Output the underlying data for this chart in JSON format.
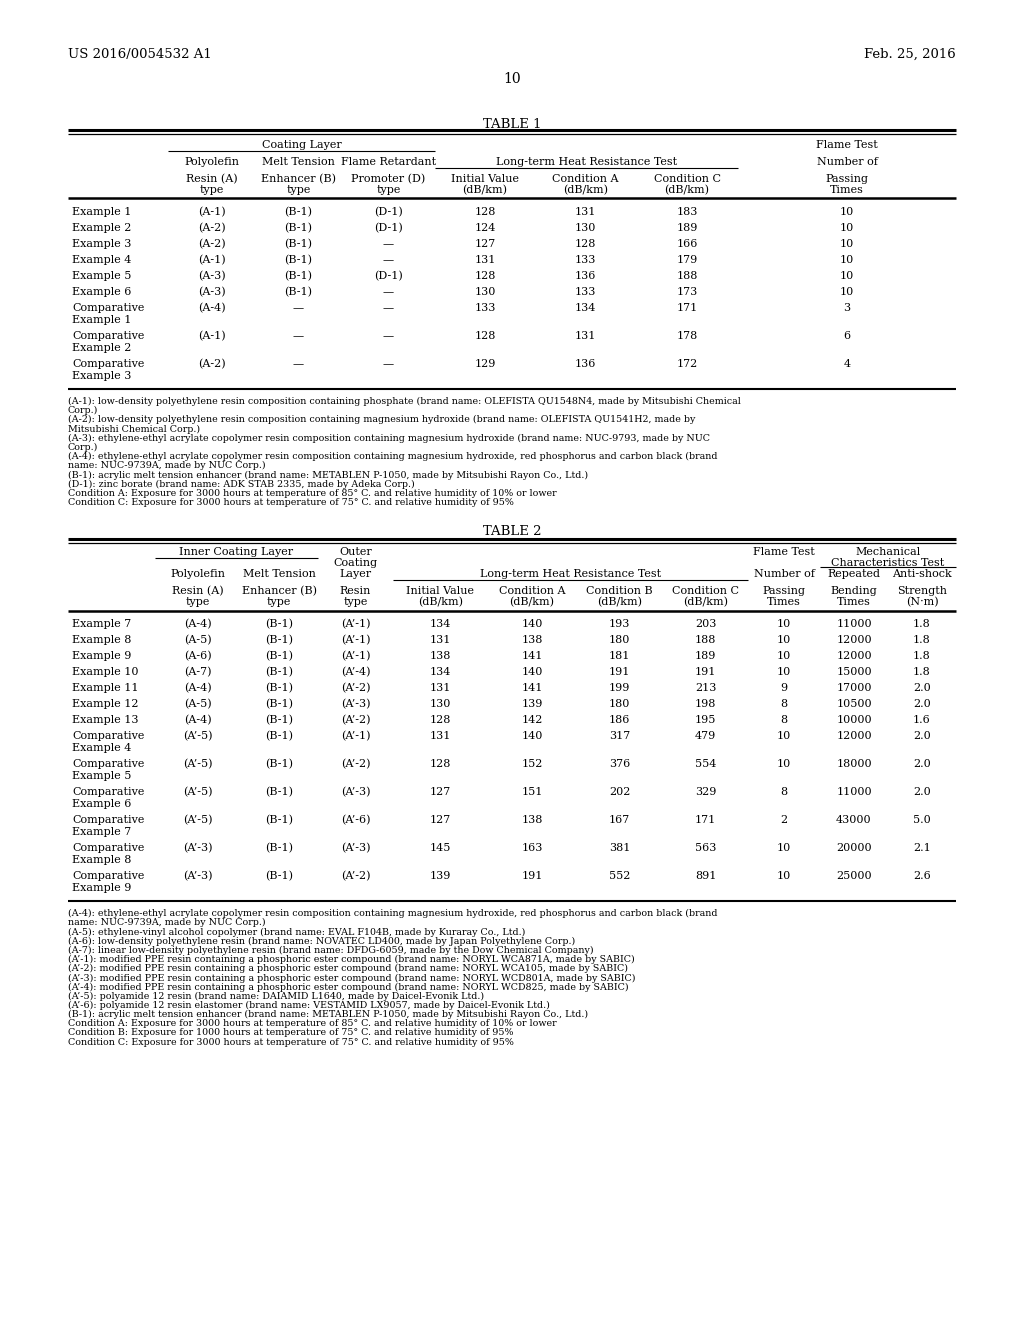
{
  "patent_number": "US 2016/0054532 A1",
  "patent_date": "Feb. 25, 2016",
  "page_number": "10",
  "table1_title": "TABLE 1",
  "table2_title": "TABLE 2",
  "table1_rows": [
    [
      "Example 1",
      "(A-1)",
      "(B-1)",
      "(D-1)",
      "128",
      "131",
      "183",
      "10"
    ],
    [
      "Example 2",
      "(A-2)",
      "(B-1)",
      "(D-1)",
      "124",
      "130",
      "189",
      "10"
    ],
    [
      "Example 3",
      "(A-2)",
      "(B-1)",
      "—",
      "127",
      "128",
      "166",
      "10"
    ],
    [
      "Example 4",
      "(A-1)",
      "(B-1)",
      "—",
      "131",
      "133",
      "179",
      "10"
    ],
    [
      "Example 5",
      "(A-3)",
      "(B-1)",
      "(D-1)",
      "128",
      "136",
      "188",
      "10"
    ],
    [
      "Example 6",
      "(A-3)",
      "(B-1)",
      "—",
      "130",
      "133",
      "173",
      "10"
    ],
    [
      "Comparative\nExample 1",
      "(A-4)",
      "—",
      "—",
      "133",
      "134",
      "171",
      "3"
    ],
    [
      "Comparative\nExample 2",
      "(A-1)",
      "—",
      "—",
      "128",
      "131",
      "178",
      "6"
    ],
    [
      "Comparative\nExample 3",
      "(A-2)",
      "—",
      "—",
      "129",
      "136",
      "172",
      "4"
    ]
  ],
  "table1_footnotes": [
    "(A-1): low-density polyethylene resin composition containing phosphate (brand name: OLEFISTA QU1548N4, made by Mitsubishi Chemical Corp.)",
    "(A-2): low-density polyethylene resin composition containing magnesium hydroxide (brand name: OLEFISTA QU1541H2, made by Mitsubishi Chemical Corp.)",
    "(A-3): ethylene-ethyl acrylate copolymer resin composition containing magnesium hydroxide (brand name: NUC-9793, made by NUC Corp.)",
    "(A-4): ethylene-ethyl acrylate copolymer resin composition containing magnesium hydroxide, red phosphorus and carbon black (brand name: NUC-9739A, made by NUC Corp.)",
    "(B-1): acrylic melt tension enhancer (brand name: METABLEN P-1050, made by Mitsubishi Rayon Co., Ltd.)",
    "(D-1): zinc borate (brand name: ADK STAB 2335, made by Adeka Corp.)",
    "Condition A: Exposure for 3000 hours at temperature of 85° C. and relative humidity of 10% or lower",
    "Condition C: Exposure for 3000 hours at temperature of 75° C. and relative humidity of 95%"
  ],
  "table2_rows": [
    [
      "Example 7",
      "(A-4)",
      "(B-1)",
      "(A’-1)",
      "134",
      "140",
      "193",
      "203",
      "10",
      "11000",
      "1.8"
    ],
    [
      "Example 8",
      "(A-5)",
      "(B-1)",
      "(A’-1)",
      "131",
      "138",
      "180",
      "188",
      "10",
      "12000",
      "1.8"
    ],
    [
      "Example 9",
      "(A-6)",
      "(B-1)",
      "(A’-1)",
      "138",
      "141",
      "181",
      "189",
      "10",
      "12000",
      "1.8"
    ],
    [
      "Example 10",
      "(A-7)",
      "(B-1)",
      "(A’-4)",
      "134",
      "140",
      "191",
      "191",
      "10",
      "15000",
      "1.8"
    ],
    [
      "Example 11",
      "(A-4)",
      "(B-1)",
      "(A’-2)",
      "131",
      "141",
      "199",
      "213",
      "9",
      "17000",
      "2.0"
    ],
    [
      "Example 12",
      "(A-5)",
      "(B-1)",
      "(A’-3)",
      "130",
      "139",
      "180",
      "198",
      "8",
      "10500",
      "2.0"
    ],
    [
      "Example 13",
      "(A-4)",
      "(B-1)",
      "(A’-2)",
      "128",
      "142",
      "186",
      "195",
      "8",
      "10000",
      "1.6"
    ],
    [
      "Comparative\nExample 4",
      "(A’-5)",
      "(B-1)",
      "(A’-1)",
      "131",
      "140",
      "317",
      "479",
      "10",
      "12000",
      "2.0"
    ],
    [
      "Comparative\nExample 5",
      "(A’-5)",
      "(B-1)",
      "(A’-2)",
      "128",
      "152",
      "376",
      "554",
      "10",
      "18000",
      "2.0"
    ],
    [
      "Comparative\nExample 6",
      "(A’-5)",
      "(B-1)",
      "(A’-3)",
      "127",
      "151",
      "202",
      "329",
      "8",
      "11000",
      "2.0"
    ],
    [
      "Comparative\nExample 7",
      "(A’-5)",
      "(B-1)",
      "(A’-6)",
      "127",
      "138",
      "167",
      "171",
      "2",
      "43000",
      "5.0"
    ],
    [
      "Comparative\nExample 8",
      "(A’-3)",
      "(B-1)",
      "(A’-3)",
      "145",
      "163",
      "381",
      "563",
      "10",
      "20000",
      "2.1"
    ],
    [
      "Comparative\nExample 9",
      "(A’-3)",
      "(B-1)",
      "(A’-2)",
      "139",
      "191",
      "552",
      "891",
      "10",
      "25000",
      "2.6"
    ]
  ],
  "table2_footnotes": [
    "(A-4): ethylene-ethyl acrylate copolymer resin composition containing magnesium hydroxide, red phosphorus and carbon black (brand name: NUC-9739A, made by NUC Corp.)",
    "(A-5): ethylene-vinyl alcohol copolymer (brand name: EVAL F104B, made by Kuraray Co., Ltd.)",
    "(A-6): low-density polyethylene resin (brand name: NOVATEC LD400, made by Japan Polyethylene Corp.)",
    "(A-7): linear low-density polyethylene resin (brand name: DFDG-6059, made by the Dow Chemical Company)",
    "(A’-1): modified PPE resin containing a phosphoric ester compound (brand name: NORYL WCA871A, made by SABIC)",
    "(A’-2): modified PPE resin containing a phosphoric ester compound (brand name: NORYL WCA105, made by SABIC)",
    "(A’-3): modified PPE resin containing a phosphoric ester compound (brand name: NORYL WCD801A, made by SABIC)",
    "(A’-4): modified PPE resin containing a phosphoric ester compound (brand name: NORYL WCD825, made by SABIC)",
    "(A’-5): polyamide 12 resin (brand name: DAIAMID L1640, made by Daicel-Evonik Ltd.)",
    "(A’-6): polyamide 12 resin elastomer (brand name: VESTAMID LX9057, made by Daicel-Evonik Ltd.)",
    "(B-1): acrylic melt tension enhancer (brand name: METABLEN P-1050, made by Mitsubishi Rayon Co., Ltd.)",
    "Condition A: Exposure for 3000 hours at temperature of 85° C. and relative humidity of 10% or lower",
    "Condition B: Exposure for 1000 hours at temperature of 75° C. and relative humidity of 95%",
    "Condition C: Exposure for 3000 hours at temperature of 75° C. and relative humidity of 95%"
  ]
}
